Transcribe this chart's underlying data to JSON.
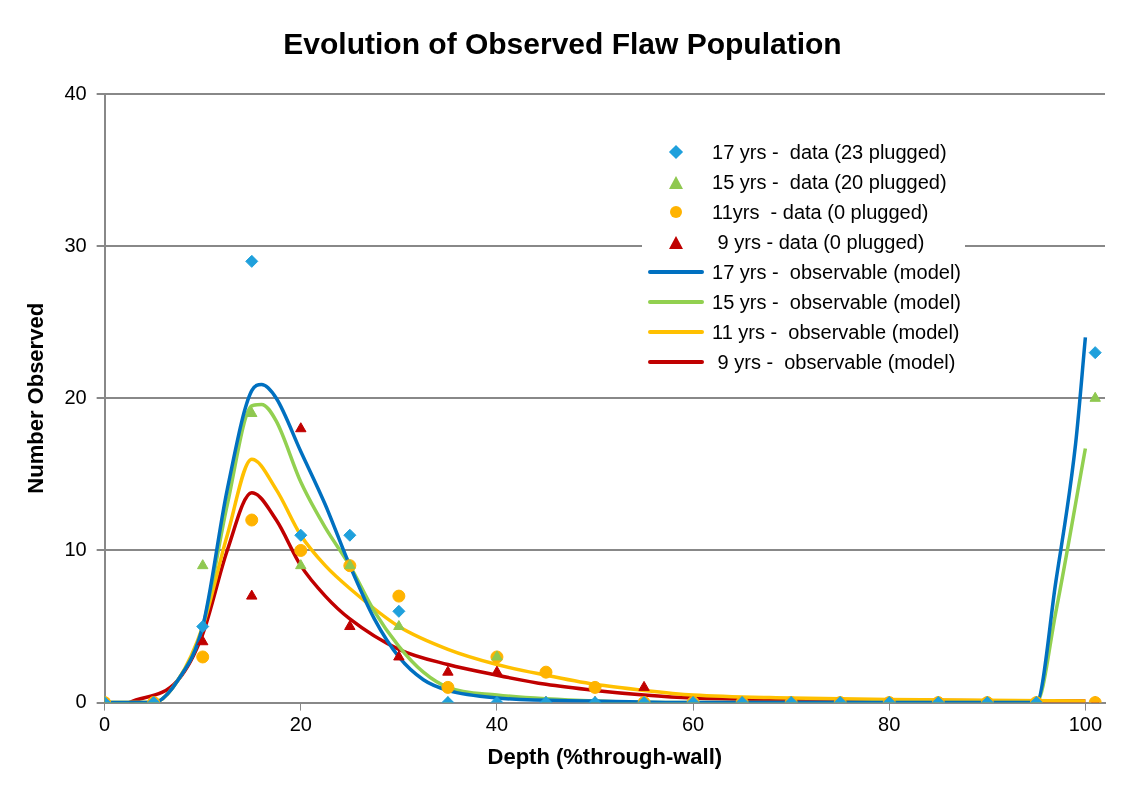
{
  "chart_data": {
    "type": "scatter",
    "title": "Evolution of Observed Flaw Population",
    "xlabel": "Depth (%through-wall)",
    "ylabel": "Number Observed",
    "xlim": [
      0,
      102
    ],
    "xticks": [
      0,
      20,
      40,
      60,
      80,
      100
    ],
    "ylim": [
      0,
      40
    ],
    "yticks": [
      0,
      10,
      20,
      30,
      40
    ],
    "grid": "y",
    "legend": "top right",
    "series": [
      {
        "name": "17 yrs -  data (23 plugged)",
        "marker": "diamond",
        "color": "#1fa0dc",
        "x": [
          0,
          5,
          10,
          15,
          20,
          25,
          30,
          35,
          40,
          45,
          50,
          55,
          60,
          65,
          70,
          75,
          80,
          85,
          90,
          95,
          101
        ],
        "values": [
          0,
          0,
          5,
          29,
          11,
          11,
          6,
          0,
          0,
          0,
          0,
          0,
          0,
          0,
          0,
          0,
          0,
          0,
          0,
          0,
          23
        ]
      },
      {
        "name": "15 yrs -  data (20 plugged)",
        "marker": "triangle",
        "color": "#8fc850",
        "x": [
          0,
          5,
          10,
          15,
          20,
          25,
          30,
          35,
          40,
          45,
          50,
          55,
          60,
          65,
          70,
          75,
          80,
          85,
          90,
          95,
          101
        ],
        "values": [
          0,
          0,
          9,
          19,
          9,
          9,
          5,
          0,
          3,
          0,
          0,
          0,
          0,
          0,
          0,
          0,
          0,
          0,
          0,
          0,
          20
        ]
      },
      {
        "name": "11yrs  - data (0 plugged)",
        "marker": "circle",
        "color": "#ffb300",
        "x": [
          0,
          5,
          10,
          15,
          20,
          25,
          30,
          35,
          40,
          45,
          50,
          55,
          60,
          65,
          70,
          75,
          80,
          85,
          90,
          95,
          101
        ],
        "values": [
          0,
          0,
          3,
          12,
          10,
          9,
          7,
          1,
          3,
          2,
          1,
          0,
          0,
          0,
          0,
          0,
          0,
          0,
          0,
          0,
          0
        ]
      },
      {
        "name": " 9 yrs - data (0 plugged)",
        "marker": "triangle",
        "color": "#c00000",
        "x": [
          0,
          5,
          10,
          15,
          20,
          25,
          30,
          35,
          40,
          45,
          50,
          55,
          60,
          65,
          70,
          75,
          80,
          85,
          90,
          95,
          101
        ],
        "values": [
          0,
          0,
          4,
          7,
          18,
          5,
          3,
          2,
          2,
          0,
          0,
          1,
          0,
          0,
          0,
          0,
          0,
          0,
          0,
          0,
          0
        ]
      },
      {
        "name": "17 yrs -  observable (model)",
        "type": "line",
        "marker": "none",
        "color": "#0070c0",
        "x": [
          0,
          5,
          7.5,
          10,
          12.5,
          15,
          16,
          17.5,
          20,
          22.5,
          25,
          27.5,
          30,
          32.5,
          35,
          40,
          50,
          60,
          95,
          97,
          99,
          100
        ],
        "values": [
          0,
          0,
          1.5,
          5,
          14,
          20.5,
          20.9,
          20,
          16.5,
          13,
          9,
          5.5,
          3,
          1.5,
          0.8,
          0.3,
          0.1,
          0,
          0,
          8,
          17,
          24
        ]
      },
      {
        "name": "15 yrs -  observable (model)",
        "type": "line",
        "marker": "none",
        "color": "#92d050",
        "x": [
          0,
          5,
          7.5,
          10,
          12.5,
          15,
          16,
          17.5,
          20,
          22.5,
          25,
          27.5,
          30,
          32.5,
          35,
          40,
          50,
          60,
          95,
          97,
          100
        ],
        "values": [
          0,
          0,
          1.5,
          5,
          13,
          19.5,
          19.6,
          18.5,
          14.5,
          11.5,
          9,
          6,
          3.7,
          2,
          1,
          0.5,
          0.1,
          0,
          0,
          6,
          16.7
        ]
      },
      {
        "name": "11 yrs -  observable (model)",
        "type": "line",
        "marker": "none",
        "color": "#ffc000",
        "x": [
          0,
          5,
          7.5,
          10,
          12.5,
          15,
          17.5,
          20,
          22.5,
          25,
          30,
          35,
          40,
          45,
          50,
          55,
          60,
          70,
          80,
          100
        ],
        "values": [
          0,
          0,
          1.5,
          5,
          11,
          16,
          14,
          11,
          9,
          7.5,
          5,
          3.5,
          2.5,
          1.8,
          1.2,
          0.8,
          0.5,
          0.3,
          0.2,
          0.1
        ]
      },
      {
        "name": " 9 yrs -  observable (model)",
        "type": "line",
        "marker": "none",
        "color": "#c00000",
        "x": [
          2.5,
          7.5,
          10,
          12.5,
          15,
          17.5,
          20,
          22.5,
          25,
          30,
          35,
          40,
          45,
          50,
          55,
          60,
          70,
          100
        ],
        "values": [
          0,
          1.5,
          4.5,
          10,
          13.8,
          12,
          9,
          7,
          5.5,
          3.5,
          2.5,
          1.8,
          1.2,
          0.8,
          0.5,
          0.3,
          0.2,
          0.1
        ]
      }
    ]
  }
}
